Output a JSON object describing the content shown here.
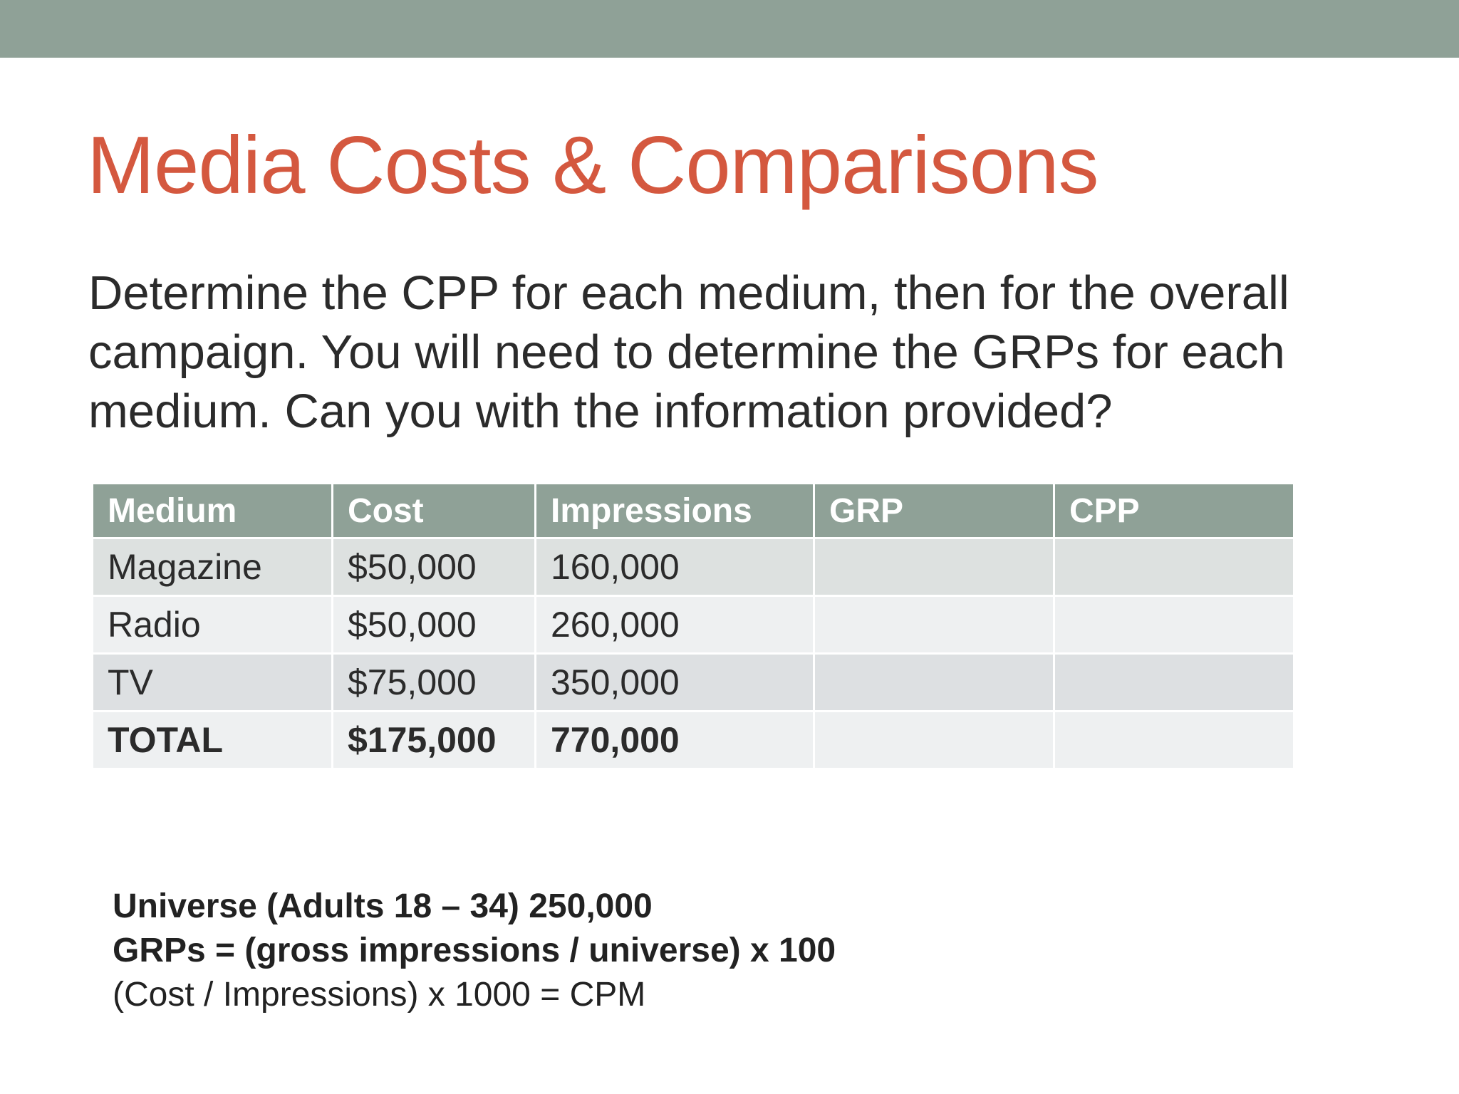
{
  "title": "Media Costs & Comparisons",
  "body_lines": [
    "Determine the CPP for each medium, then for the overall",
    "campaign. You will need to determine the GRPs for each",
    "medium. Can you with the information provided?"
  ],
  "table": {
    "header": [
      "Medium",
      "Cost",
      "Impressions",
      "GRP",
      "CPP"
    ],
    "rows": [
      [
        "Magazine",
        "$50,000",
        "160,000"
      ],
      [
        "Radio",
        "$50,000",
        "260,000"
      ],
      [
        "TV",
        "$75,000",
        "350,000"
      ],
      [
        "TOTAL",
        "$175,000",
        "770,000"
      ]
    ]
  },
  "notes": [
    "Universe (Adults 18 – 34)  250,000",
    "GRPs = (gross impressions / universe) x 100",
    "(Cost / Impressions) x 1000 = CPM"
  ]
}
